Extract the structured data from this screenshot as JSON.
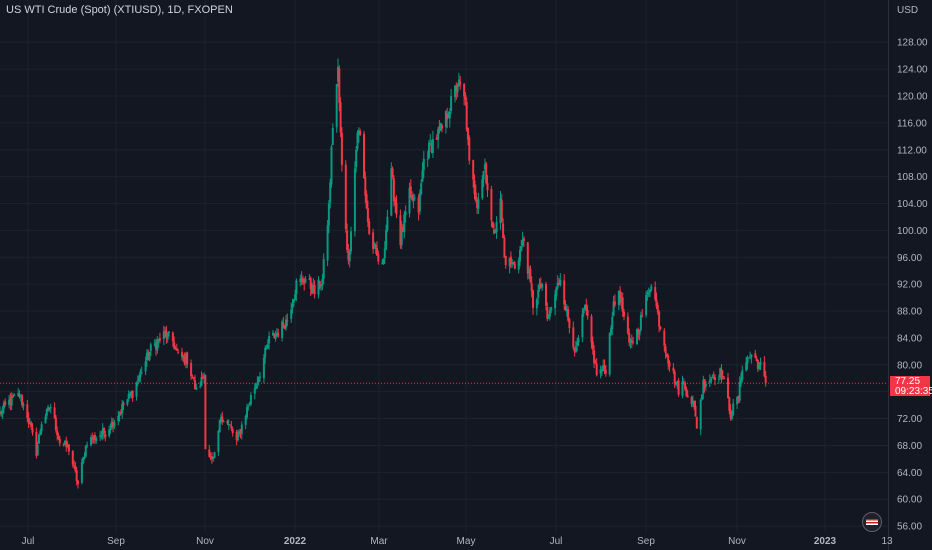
{
  "header": {
    "title": "US WTI Crude (Spot) (XTIUSD), 1D, FXOPEN",
    "currency": "USD"
  },
  "price_label": {
    "price": "77.25",
    "countdown": "09:23:35"
  },
  "colors": {
    "background": "#131722",
    "up": "#089981",
    "down": "#f23645",
    "text": "#b2b5be",
    "grid": "#1e222d"
  },
  "icons": {
    "flag": "us-flag-icon"
  },
  "chart_data": {
    "type": "candlestick",
    "title": "US WTI Crude (Spot) (XTIUSD), 1D, FXOPEN",
    "ylabel": "USD",
    "ylim": [
      55,
      131
    ],
    "yticks": [
      "56.00",
      "60.00",
      "64.00",
      "68.00",
      "72.00",
      "76.00",
      "80.00",
      "84.00",
      "88.00",
      "92.00",
      "96.00",
      "100.00",
      "104.00",
      "108.00",
      "112.00",
      "116.00",
      "120.00",
      "124.00",
      "128.00"
    ],
    "xlabels": [
      "Jul",
      "Sep",
      "Nov",
      "2022",
      "Mar",
      "May",
      "Jul",
      "Sep",
      "Nov",
      "2023",
      "13"
    ],
    "current_price": 77.25,
    "grid": true,
    "anchors": [
      [
        "2021-06-21",
        72.8
      ],
      [
        "2021-06-28",
        74.5
      ],
      [
        "2021-07-06",
        75.5
      ],
      [
        "2021-07-12",
        72.5
      ],
      [
        "2021-07-19",
        67.0
      ],
      [
        "2021-07-23",
        71.5
      ],
      [
        "2021-07-30",
        73.8
      ],
      [
        "2021-08-06",
        68.5
      ],
      [
        "2021-08-13",
        67.5
      ],
      [
        "2021-08-20",
        62.2
      ],
      [
        "2021-08-27",
        68.7
      ],
      [
        "2021-09-03",
        69.3
      ],
      [
        "2021-09-10",
        70.0
      ],
      [
        "2021-09-17",
        71.8
      ],
      [
        "2021-09-24",
        74.0
      ],
      [
        "2021-10-01",
        75.9
      ],
      [
        "2021-10-08",
        79.2
      ],
      [
        "2021-10-15",
        82.3
      ],
      [
        "2021-10-22",
        83.8
      ],
      [
        "2021-10-26",
        84.6
      ],
      [
        "2021-11-01",
        83.5
      ],
      [
        "2021-11-05",
        81.2
      ],
      [
        "2021-11-12",
        80.8
      ],
      [
        "2021-11-19",
        76.0
      ],
      [
        "2021-11-25",
        78.5
      ],
      [
        "2021-11-26",
        68.2
      ],
      [
        "2021-12-01",
        65.5
      ],
      [
        "2021-12-03",
        66.3
      ],
      [
        "2021-12-08",
        72.5
      ],
      [
        "2021-12-15",
        70.7
      ],
      [
        "2021-12-20",
        68.6
      ],
      [
        "2021-12-31",
        75.2
      ],
      [
        "2022-01-07",
        78.9
      ],
      [
        "2022-01-14",
        83.7
      ],
      [
        "2022-01-21",
        84.9
      ],
      [
        "2022-01-28",
        86.8
      ],
      [
        "2022-02-04",
        92.0
      ],
      [
        "2022-02-11",
        92.8
      ],
      [
        "2022-02-18",
        90.8
      ],
      [
        "2022-02-24",
        92.6
      ],
      [
        "2022-03-01",
        103.5
      ],
      [
        "2022-03-04",
        115.8
      ],
      [
        "2022-03-08",
        123.7
      ],
      [
        "2022-03-11",
        109.3
      ],
      [
        "2022-03-16",
        95.0
      ],
      [
        "2022-03-23",
        114.9
      ],
      [
        "2022-03-25",
        113.8
      ],
      [
        "2022-04-01",
        99.3
      ],
      [
        "2022-04-07",
        96.0
      ],
      [
        "2022-04-11",
        94.3
      ],
      [
        "2022-04-18",
        108.2
      ],
      [
        "2022-04-25",
        98.5
      ],
      [
        "2022-05-02",
        105.2
      ],
      [
        "2022-05-09",
        103.1
      ],
      [
        "2022-05-13",
        110.5
      ],
      [
        "2022-05-20",
        113.2
      ],
      [
        "2022-05-27",
        115.1
      ],
      [
        "2022-06-03",
        118.9
      ],
      [
        "2022-06-08",
        122.0
      ],
      [
        "2022-06-14",
        118.9
      ],
      [
        "2022-06-17",
        109.6
      ],
      [
        "2022-06-23",
        104.3
      ],
      [
        "2022-06-29",
        109.8
      ],
      [
        "2022-07-05",
        99.5
      ],
      [
        "2022-07-11",
        104.1
      ],
      [
        "2022-07-14",
        95.8
      ],
      [
        "2022-07-22",
        94.7
      ],
      [
        "2022-07-29",
        98.6
      ],
      [
        "2022-08-05",
        89.0
      ],
      [
        "2022-08-12",
        92.1
      ],
      [
        "2022-08-16",
        86.5
      ],
      [
        "2022-08-26",
        93.1
      ],
      [
        "2022-09-01",
        86.6
      ],
      [
        "2022-09-07",
        81.9
      ],
      [
        "2022-09-14",
        88.5
      ],
      [
        "2022-09-23",
        78.7
      ],
      [
        "2022-09-30",
        79.5
      ],
      [
        "2022-10-05",
        87.8
      ],
      [
        "2022-10-10",
        91.1
      ],
      [
        "2022-10-18",
        82.8
      ],
      [
        "2022-10-25",
        85.3
      ],
      [
        "2022-11-04",
        92.6
      ],
      [
        "2022-11-10",
        86.5
      ],
      [
        "2022-11-18",
        80.1
      ],
      [
        "2022-11-25",
        76.3
      ],
      [
        "2022-11-28",
        77.2
      ],
      [
        "2022-12-06",
        74.3
      ],
      [
        "2022-12-09",
        71.0
      ],
      [
        "2022-12-14",
        77.3
      ],
      [
        "2022-12-21",
        78.3
      ],
      [
        "2022-12-28",
        78.9
      ],
      [
        "2023-01-04",
        72.8
      ],
      [
        "2023-01-10",
        75.1
      ],
      [
        "2023-01-13",
        79.9
      ],
      [
        "2023-01-20",
        81.6
      ],
      [
        "2023-01-24",
        80.5
      ],
      [
        "2023-01-27",
        79.7
      ],
      [
        "2023-01-31",
        77.25
      ]
    ]
  }
}
